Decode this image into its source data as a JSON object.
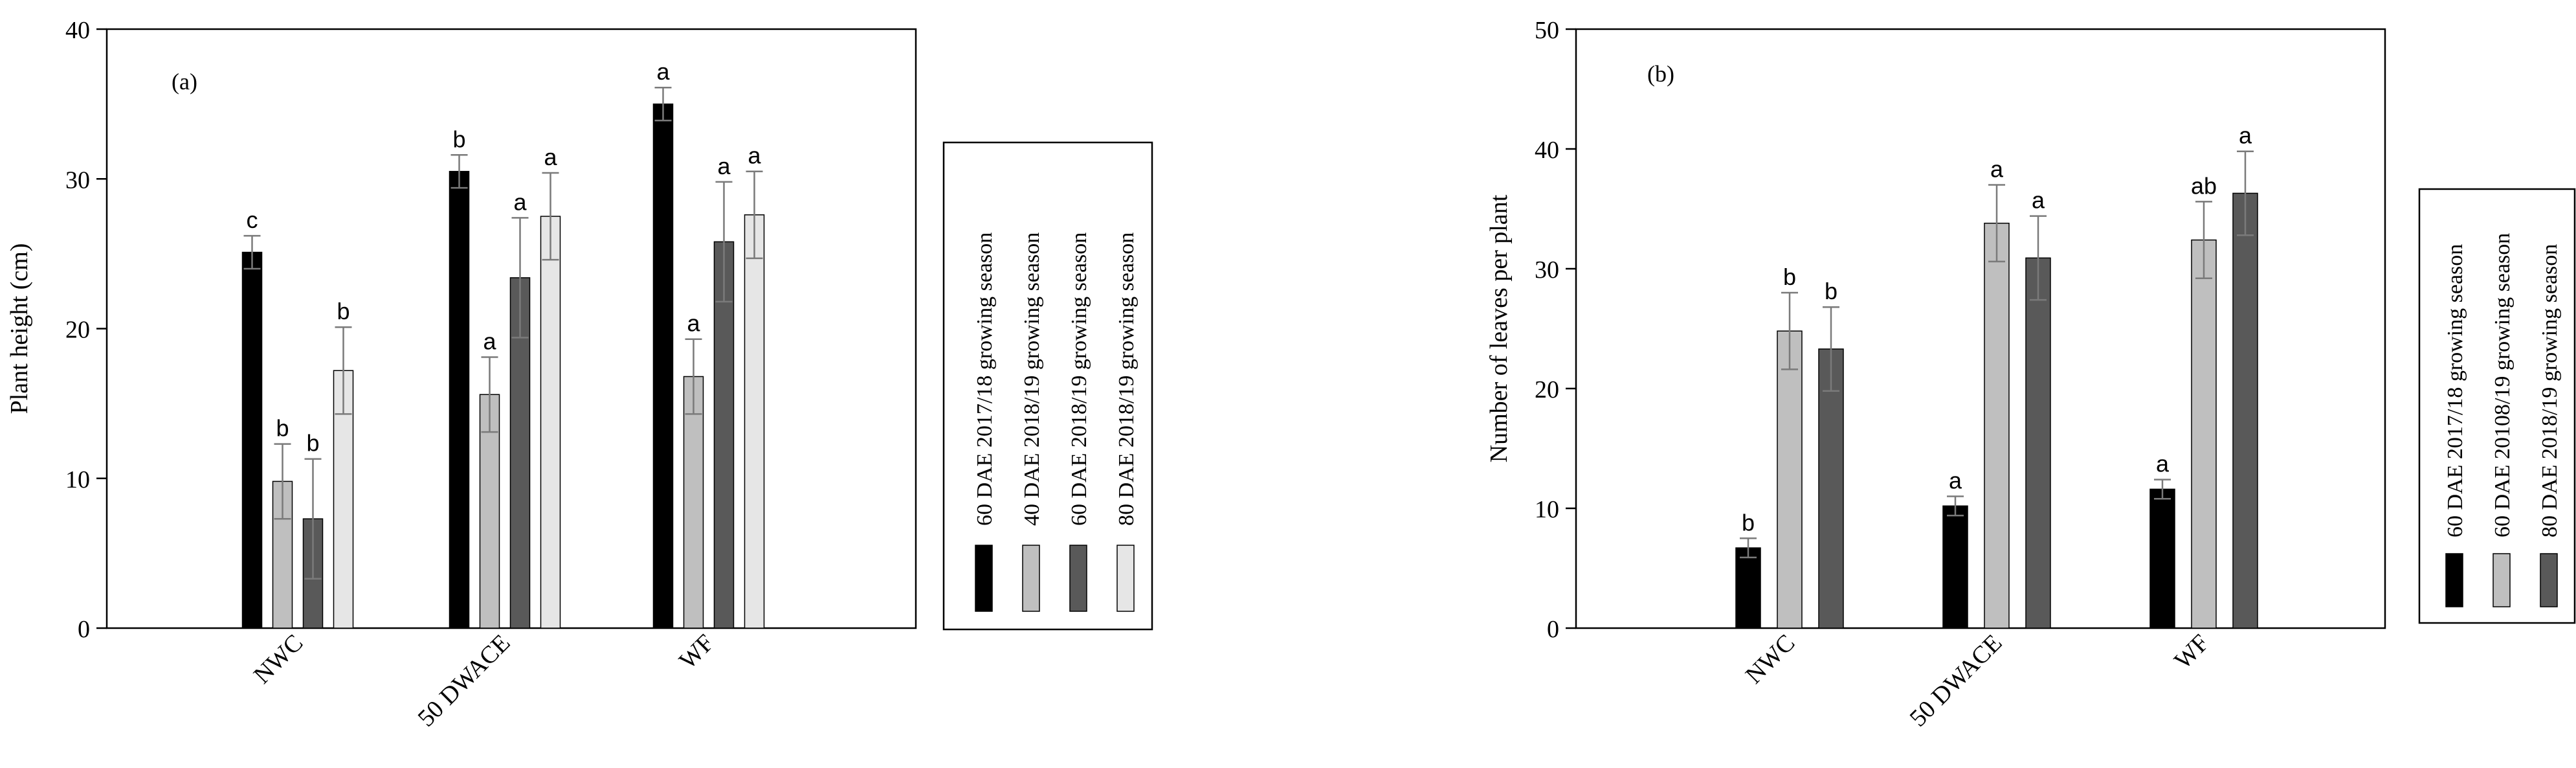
{
  "chart_data": [
    {
      "type": "bar",
      "panel_label": "(a)",
      "ylabel": "Plant height (cm)",
      "ylim": [
        0,
        40
      ],
      "yticks": [
        "0",
        "10",
        "20",
        "30",
        "40"
      ],
      "categories": [
        "NWC",
        "50 DWACE",
        "WF"
      ],
      "grid": false,
      "legend_position": "right",
      "series": [
        {
          "name": "60 DAE 2017/18 growing season",
          "color": "#000000",
          "values": [
            25.1,
            30.5,
            35.0
          ],
          "errors": [
            1.1,
            1.1,
            1.1
          ],
          "letters": [
            "c",
            "b",
            "a"
          ]
        },
        {
          "name": "40 DAE 2018/19 growing season",
          "color": "#bfbfbf",
          "values": [
            9.8,
            15.6,
            16.8
          ],
          "errors": [
            2.5,
            2.5,
            2.5
          ],
          "letters": [
            "b",
            "a",
            "a"
          ]
        },
        {
          "name": "60 DAE 2018/19 growing season",
          "color": "#595959",
          "values": [
            7.3,
            23.4,
            25.8
          ],
          "errors": [
            4.0,
            4.0,
            4.0
          ],
          "letters": [
            "b",
            "a",
            "a"
          ]
        },
        {
          "name": "80 DAE 2018/19 growing season",
          "color": "#e6e6e6",
          "values": [
            17.2,
            27.5,
            27.6
          ],
          "errors": [
            2.9,
            2.9,
            2.9
          ],
          "letters": [
            "b",
            "a",
            "a"
          ]
        }
      ]
    },
    {
      "type": "bar",
      "panel_label": "(b)",
      "ylabel": "Number of leaves per plant",
      "ylim": [
        0,
        50
      ],
      "yticks": [
        "0",
        "10",
        "20",
        "30",
        "40",
        "50"
      ],
      "categories": [
        "NWC",
        "50 DWACE",
        "WF"
      ],
      "grid": false,
      "legend_position": "right",
      "series": [
        {
          "name": "60 DAE 2017/18 growing season",
          "color": "#000000",
          "values": [
            6.7,
            10.2,
            11.6
          ],
          "errors": [
            0.8,
            0.8,
            0.8
          ],
          "letters": [
            "b",
            "a",
            "a"
          ]
        },
        {
          "name": "60 DAE 20108/19 growing season",
          "color": "#bfbfbf",
          "values": [
            24.8,
            33.8,
            32.4
          ],
          "errors": [
            3.2,
            3.2,
            3.2
          ],
          "letters": [
            "b",
            "a",
            "ab"
          ]
        },
        {
          "name": "80 DAE 2018/19 growing season",
          "color": "#595959",
          "values": [
            23.3,
            30.9,
            36.3
          ],
          "errors": [
            3.5,
            3.5,
            3.5
          ],
          "letters": [
            "b",
            "a",
            "a"
          ]
        }
      ]
    }
  ]
}
